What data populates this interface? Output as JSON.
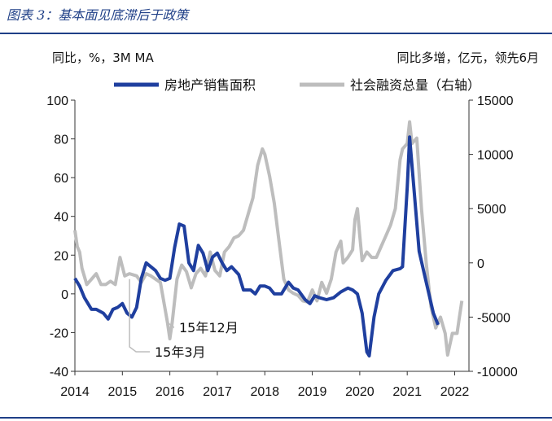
{
  "figure": {
    "title": "图表 3：基本面见底滞后于政策"
  },
  "chart_data": {
    "type": "line",
    "left_unit": "同比，%，3M MA",
    "right_unit": "同比多增，亿元，领先6月",
    "x_ticks": [
      "2014",
      "2015",
      "2016",
      "2017",
      "2018",
      "2019",
      "2020",
      "2021",
      "2022"
    ],
    "y_left": {
      "range": [
        -40,
        100
      ],
      "ticks": [
        "-40",
        "-20",
        "0",
        "20",
        "40",
        "60",
        "80",
        "100"
      ]
    },
    "y_right": {
      "range": [
        -10000,
        15000
      ],
      "ticks": [
        "-10000",
        "-5000",
        "0",
        "5000",
        "10000",
        "15000"
      ]
    },
    "grid": false,
    "legend_position": "top",
    "colors": {
      "series1": "#1f3f9f",
      "series2": "#bdbdbd",
      "rule": "#1f3f87"
    },
    "series": [
      {
        "name": "房地产销售面积",
        "axis": "left",
        "points": [
          [
            2014.0,
            8
          ],
          [
            2014.1,
            4
          ],
          [
            2014.2,
            -2
          ],
          [
            2014.35,
            -8
          ],
          [
            2014.45,
            -8
          ],
          [
            2014.6,
            -10
          ],
          [
            2014.7,
            -13
          ],
          [
            2014.8,
            -8
          ],
          [
            2014.9,
            -7
          ],
          [
            2015.0,
            -5
          ],
          [
            2015.1,
            -10
          ],
          [
            2015.2,
            -12
          ],
          [
            2015.3,
            -7
          ],
          [
            2015.4,
            8
          ],
          [
            2015.5,
            16
          ],
          [
            2015.6,
            14
          ],
          [
            2015.7,
            12
          ],
          [
            2015.8,
            8
          ],
          [
            2015.9,
            7
          ],
          [
            2016.0,
            8
          ],
          [
            2016.1,
            24
          ],
          [
            2016.2,
            36
          ],
          [
            2016.3,
            35
          ],
          [
            2016.4,
            16
          ],
          [
            2016.5,
            12
          ],
          [
            2016.6,
            25
          ],
          [
            2016.7,
            21
          ],
          [
            2016.8,
            12
          ],
          [
            2016.9,
            19
          ],
          [
            2017.0,
            21
          ],
          [
            2017.1,
            16
          ],
          [
            2017.2,
            12
          ],
          [
            2017.3,
            14
          ],
          [
            2017.45,
            10
          ],
          [
            2017.55,
            2
          ],
          [
            2017.7,
            2
          ],
          [
            2017.8,
            0
          ],
          [
            2017.9,
            4
          ],
          [
            2018.0,
            4
          ],
          [
            2018.1,
            3
          ],
          [
            2018.2,
            0
          ],
          [
            2018.35,
            0
          ],
          [
            2018.5,
            6
          ],
          [
            2018.6,
            3
          ],
          [
            2018.7,
            2
          ],
          [
            2018.85,
            -3
          ],
          [
            2018.95,
            -5
          ],
          [
            2019.05,
            -1
          ],
          [
            2019.15,
            -2
          ],
          [
            2019.3,
            -3
          ],
          [
            2019.45,
            -2
          ],
          [
            2019.6,
            1
          ],
          [
            2019.75,
            3
          ],
          [
            2019.85,
            2
          ],
          [
            2019.95,
            0
          ],
          [
            2020.05,
            -10
          ],
          [
            2020.15,
            -30
          ],
          [
            2020.2,
            -32
          ],
          [
            2020.3,
            -12
          ],
          [
            2020.4,
            0
          ],
          [
            2020.55,
            7
          ],
          [
            2020.7,
            12
          ],
          [
            2020.85,
            13
          ],
          [
            2020.9,
            14
          ],
          [
            2021.0,
            55
          ],
          [
            2021.05,
            81
          ],
          [
            2021.15,
            52
          ],
          [
            2021.25,
            22
          ],
          [
            2021.4,
            6
          ],
          [
            2021.55,
            -10
          ],
          [
            2021.65,
            -16
          ]
        ]
      },
      {
        "name": "社会融资总量（右轴）",
        "axis": "right",
        "points": [
          [
            2014.0,
            3000
          ],
          [
            2014.05,
            1500
          ],
          [
            2014.1,
            1000
          ],
          [
            2014.15,
            -500
          ],
          [
            2014.25,
            -2000
          ],
          [
            2014.35,
            -1500
          ],
          [
            2014.45,
            -1000
          ],
          [
            2014.55,
            -2000
          ],
          [
            2014.65,
            -2000
          ],
          [
            2014.75,
            -1700
          ],
          [
            2014.85,
            -2000
          ],
          [
            2014.95,
            500
          ],
          [
            2015.05,
            -1200
          ],
          [
            2015.15,
            -1000
          ],
          [
            2015.3,
            -1200
          ],
          [
            2015.4,
            -1800
          ],
          [
            2015.5,
            -1000
          ],
          [
            2015.6,
            -1200
          ],
          [
            2015.7,
            -1500
          ],
          [
            2015.8,
            -1800
          ],
          [
            2015.95,
            -5500
          ],
          [
            2016.0,
            -7000
          ],
          [
            2016.05,
            -5500
          ],
          [
            2016.15,
            -1500
          ],
          [
            2016.25,
            -200
          ],
          [
            2016.35,
            -800
          ],
          [
            2016.45,
            -2300
          ],
          [
            2016.55,
            -1000
          ],
          [
            2016.65,
            -500
          ],
          [
            2016.75,
            -1200
          ],
          [
            2016.85,
            1000
          ],
          [
            2016.95,
            -700
          ],
          [
            2017.05,
            -1200
          ],
          [
            2017.15,
            1000
          ],
          [
            2017.25,
            1500
          ],
          [
            2017.35,
            2300
          ],
          [
            2017.45,
            2500
          ],
          [
            2017.55,
            3000
          ],
          [
            2017.65,
            4500
          ],
          [
            2017.75,
            6000
          ],
          [
            2017.85,
            9000
          ],
          [
            2017.95,
            10500
          ],
          [
            2018.0,
            10000
          ],
          [
            2018.1,
            8000
          ],
          [
            2018.2,
            5500
          ],
          [
            2018.3,
            2000
          ],
          [
            2018.4,
            -1500
          ],
          [
            2018.5,
            -2500
          ],
          [
            2018.6,
            -2800
          ],
          [
            2018.7,
            -3000
          ],
          [
            2018.8,
            -3500
          ],
          [
            2018.9,
            -3600
          ],
          [
            2019.0,
            -2500
          ],
          [
            2019.1,
            -3500
          ],
          [
            2019.2,
            -1800
          ],
          [
            2019.3,
            -2800
          ],
          [
            2019.4,
            -1500
          ],
          [
            2019.5,
            1000
          ],
          [
            2019.6,
            2000
          ],
          [
            2019.65,
            0
          ],
          [
            2019.75,
            500
          ],
          [
            2019.85,
            1200
          ],
          [
            2019.9,
            4000
          ],
          [
            2019.95,
            5000
          ],
          [
            2020.0,
            2500
          ],
          [
            2020.05,
            200
          ],
          [
            2020.15,
            1000
          ],
          [
            2020.25,
            500
          ],
          [
            2020.35,
            500
          ],
          [
            2020.45,
            1500
          ],
          [
            2020.55,
            2500
          ],
          [
            2020.65,
            3500
          ],
          [
            2020.75,
            5000
          ],
          [
            2020.85,
            9500
          ],
          [
            2020.9,
            10500
          ],
          [
            2021.0,
            11000
          ],
          [
            2021.05,
            13000
          ],
          [
            2021.1,
            11000
          ],
          [
            2021.2,
            11500
          ],
          [
            2021.3,
            5000
          ],
          [
            2021.4,
            0
          ],
          [
            2021.5,
            -4000
          ],
          [
            2021.6,
            -6000
          ],
          [
            2021.7,
            -5000
          ],
          [
            2021.8,
            -6500
          ],
          [
            2021.85,
            -8500
          ],
          [
            2021.95,
            -6500
          ],
          [
            2022.05,
            -6500
          ],
          [
            2022.1,
            -5000
          ],
          [
            2022.15,
            -3500
          ]
        ]
      }
    ],
    "annotations": [
      {
        "text": "15年12月",
        "at": [
          2015.95,
          -5500
        ]
      },
      {
        "text": "15年3月",
        "at": [
          2015.15,
          -1500
        ]
      }
    ]
  }
}
